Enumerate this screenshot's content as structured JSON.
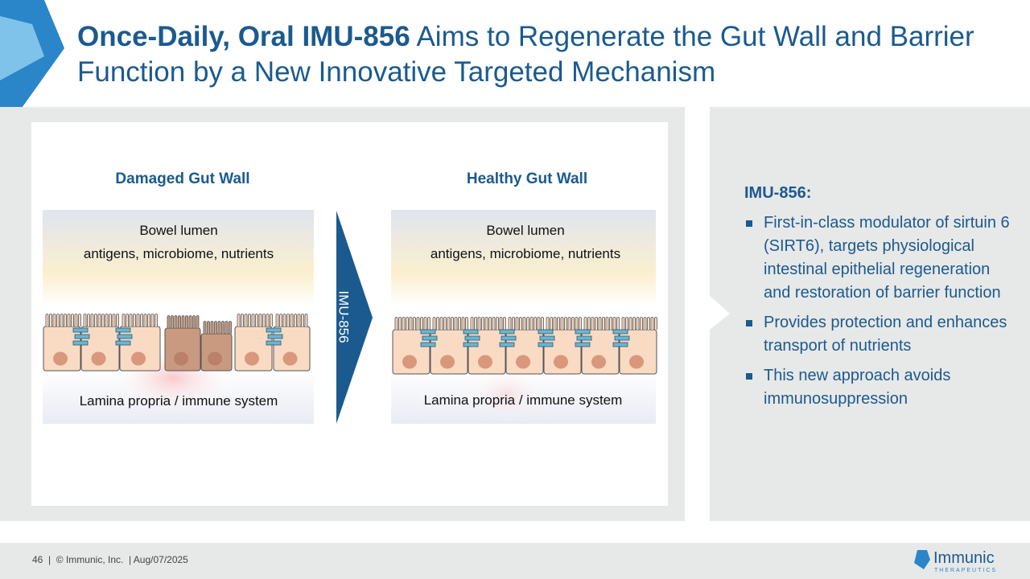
{
  "header": {
    "title_bold": "Once-Daily, Oral IMU-856",
    "title_rest": " Aims to Regenerate the Gut Wall and Barrier Function by a New Innovative Targeted Mechanism"
  },
  "diagram": {
    "damaged": {
      "title": "Damaged Gut Wall",
      "lumen": "Bowel lumen",
      "lumen_contents": "antigens, microbiome, nutrients",
      "base": "Lamina propria / immune system"
    },
    "arrow": "IMU-856",
    "healthy": {
      "title": "Healthy Gut Wall",
      "lumen": "Bowel lumen",
      "lumen_contents": "antigens, microbiome, nutrients",
      "base": "Lamina propria / immune system"
    }
  },
  "sidebar": {
    "heading": "IMU-856:",
    "bullets": [
      "First-in-class modulator of sirtuin 6 (SIRT6), targets physiological intestinal epithelial regeneration and restoration of barrier function",
      "Provides protection and enhances transport of nutrients",
      "This new approach avoids immunosuppression"
    ]
  },
  "footer": {
    "text": "46  |  © Immunic, Inc.  | Aug/07/2025",
    "logo": "Immunic",
    "logo_sub": "THERAPEUTICS"
  }
}
